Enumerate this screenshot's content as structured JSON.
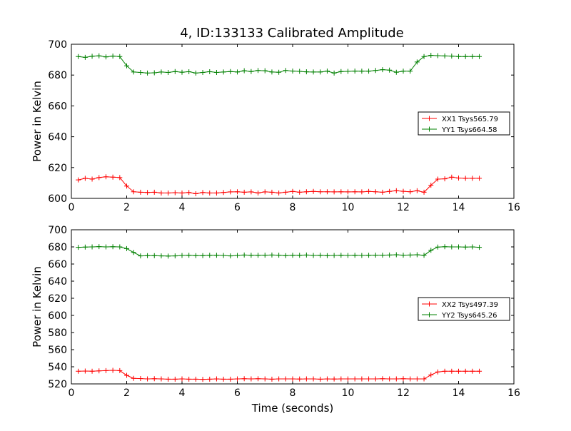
{
  "figure": {
    "title": "4, ID:133133 Calibrated Amplitude"
  },
  "chart_data": [
    {
      "type": "line",
      "title": "4, ID:133133 Calibrated Amplitude",
      "xlabel": "",
      "ylabel": "Power in Kelvin",
      "xlim": [
        0,
        16
      ],
      "ylim": [
        600,
        700
      ],
      "xticks": [
        0,
        2,
        4,
        6,
        8,
        10,
        12,
        14,
        16
      ],
      "yticks": [
        600,
        620,
        640,
        660,
        680,
        700
      ],
      "grid": false,
      "legend_position": "center-right",
      "x": [
        0.25,
        0.5,
        0.75,
        1.0,
        1.25,
        1.5,
        1.75,
        2.0,
        2.25,
        2.5,
        2.75,
        3.0,
        3.25,
        3.5,
        3.75,
        4.0,
        4.25,
        4.5,
        4.75,
        5.0,
        5.25,
        5.5,
        5.75,
        6.0,
        6.25,
        6.5,
        6.75,
        7.0,
        7.25,
        7.5,
        7.75,
        8.0,
        8.25,
        8.5,
        8.75,
        9.0,
        9.25,
        9.5,
        9.75,
        10.0,
        10.25,
        10.5,
        10.75,
        11.0,
        11.25,
        11.5,
        11.75,
        12.0,
        12.25,
        12.5,
        12.75,
        13.0,
        13.25,
        13.5,
        13.75,
        14.0,
        14.25,
        14.5,
        14.75
      ],
      "series": [
        {
          "name": "XX1 Tsys565.79",
          "color": "#ff0000",
          "values": [
            612,
            613,
            612.5,
            613.5,
            614,
            613.8,
            613.5,
            608,
            604.3,
            604,
            603.8,
            604,
            603.5,
            603.5,
            603.7,
            603.5,
            603.8,
            603,
            603.8,
            603.5,
            603.5,
            603.8,
            604.2,
            604.3,
            604,
            604.2,
            603.5,
            604.2,
            604,
            603.5,
            604,
            604.5,
            604,
            604.3,
            604.5,
            604.3,
            604.3,
            604.2,
            604.3,
            604.2,
            604.3,
            604.2,
            604.5,
            604.3,
            604,
            604.5,
            605,
            604.6,
            604.3,
            605,
            604,
            608.5,
            612.5,
            612.7,
            613.8,
            613.2,
            613,
            613,
            613
          ]
        },
        {
          "name": "YY1 Tsys664.58",
          "color": "#008000",
          "values": [
            692,
            691.5,
            692.2,
            692.5,
            691.8,
            692.3,
            692,
            686,
            682,
            681.7,
            681.3,
            681.5,
            682,
            681.7,
            682.3,
            681.8,
            682.2,
            681.3,
            681.7,
            682.2,
            681.7,
            682,
            682.3,
            682,
            682.8,
            682.3,
            683,
            682.8,
            682,
            681.8,
            683,
            682.6,
            682.4,
            682.1,
            682,
            682,
            682.6,
            681.3,
            682.3,
            682.4,
            682.6,
            682.5,
            682.5,
            683,
            683.5,
            683.2,
            681.8,
            682.5,
            682.5,
            688.5,
            692,
            692.8,
            692.6,
            692.4,
            692.3,
            692,
            692,
            692,
            692
          ]
        }
      ]
    },
    {
      "type": "line",
      "title": "",
      "xlabel": "Time (seconds)",
      "ylabel": "Power in Kelvin",
      "xlim": [
        0,
        16
      ],
      "ylim": [
        520,
        700
      ],
      "xticks": [
        0,
        2,
        4,
        6,
        8,
        10,
        12,
        14,
        16
      ],
      "yticks": [
        520,
        540,
        560,
        580,
        600,
        620,
        640,
        660,
        680,
        700
      ],
      "grid": false,
      "legend_position": "center-right",
      "x": [
        0.25,
        0.5,
        0.75,
        1.0,
        1.25,
        1.5,
        1.75,
        2.0,
        2.25,
        2.5,
        2.75,
        3.0,
        3.25,
        3.5,
        3.75,
        4.0,
        4.25,
        4.5,
        4.75,
        5.0,
        5.25,
        5.5,
        5.75,
        6.0,
        6.25,
        6.5,
        6.75,
        7.0,
        7.25,
        7.5,
        7.75,
        8.0,
        8.25,
        8.5,
        8.75,
        9.0,
        9.25,
        9.5,
        9.75,
        10.0,
        10.25,
        10.5,
        10.75,
        11.0,
        11.25,
        11.5,
        11.75,
        12.0,
        12.25,
        12.5,
        12.75,
        13.0,
        13.25,
        13.5,
        13.75,
        14.0,
        14.25,
        14.5,
        14.75
      ],
      "series": [
        {
          "name": "XX2 Tsys497.39",
          "color": "#ff0000",
          "values": [
            534.8,
            535,
            534.8,
            535.2,
            535.5,
            535.8,
            535.5,
            530,
            526.5,
            526.2,
            525.8,
            526,
            525.8,
            525.5,
            525.5,
            525.8,
            525.5,
            525.5,
            525.3,
            525.5,
            525.8,
            525.5,
            525.5,
            525.8,
            526,
            525.8,
            526,
            525.8,
            525.5,
            525.8,
            525.8,
            525.8,
            525.7,
            525.8,
            525.8,
            525.5,
            525.8,
            525.7,
            525.8,
            525.8,
            525.8,
            525.8,
            525.8,
            525.8,
            526,
            525.8,
            525.8,
            526,
            525.8,
            525.8,
            525.8,
            530.5,
            534,
            534.8,
            534.8,
            534.8,
            534.8,
            534.8,
            534.8
          ]
        },
        {
          "name": "YY2 Tsys645.26",
          "color": "#008000",
          "values": [
            679.5,
            679.8,
            680,
            680.3,
            680,
            680.2,
            680,
            678,
            673.5,
            669.5,
            669.8,
            669.8,
            669.5,
            669.3,
            669.5,
            670,
            670.2,
            669.8,
            669.8,
            670.2,
            670.2,
            670,
            669.5,
            670,
            670.5,
            670.2,
            670.2,
            670.3,
            670.5,
            670.3,
            669.8,
            670.2,
            670.2,
            670.5,
            670,
            670.2,
            669.8,
            670,
            670.2,
            670,
            670.2,
            670,
            670.2,
            670.3,
            670.3,
            670.5,
            670.8,
            670.3,
            670.5,
            670.8,
            670.2,
            676,
            679.8,
            680.2,
            680,
            680,
            679.8,
            680,
            679.5
          ]
        }
      ]
    }
  ]
}
